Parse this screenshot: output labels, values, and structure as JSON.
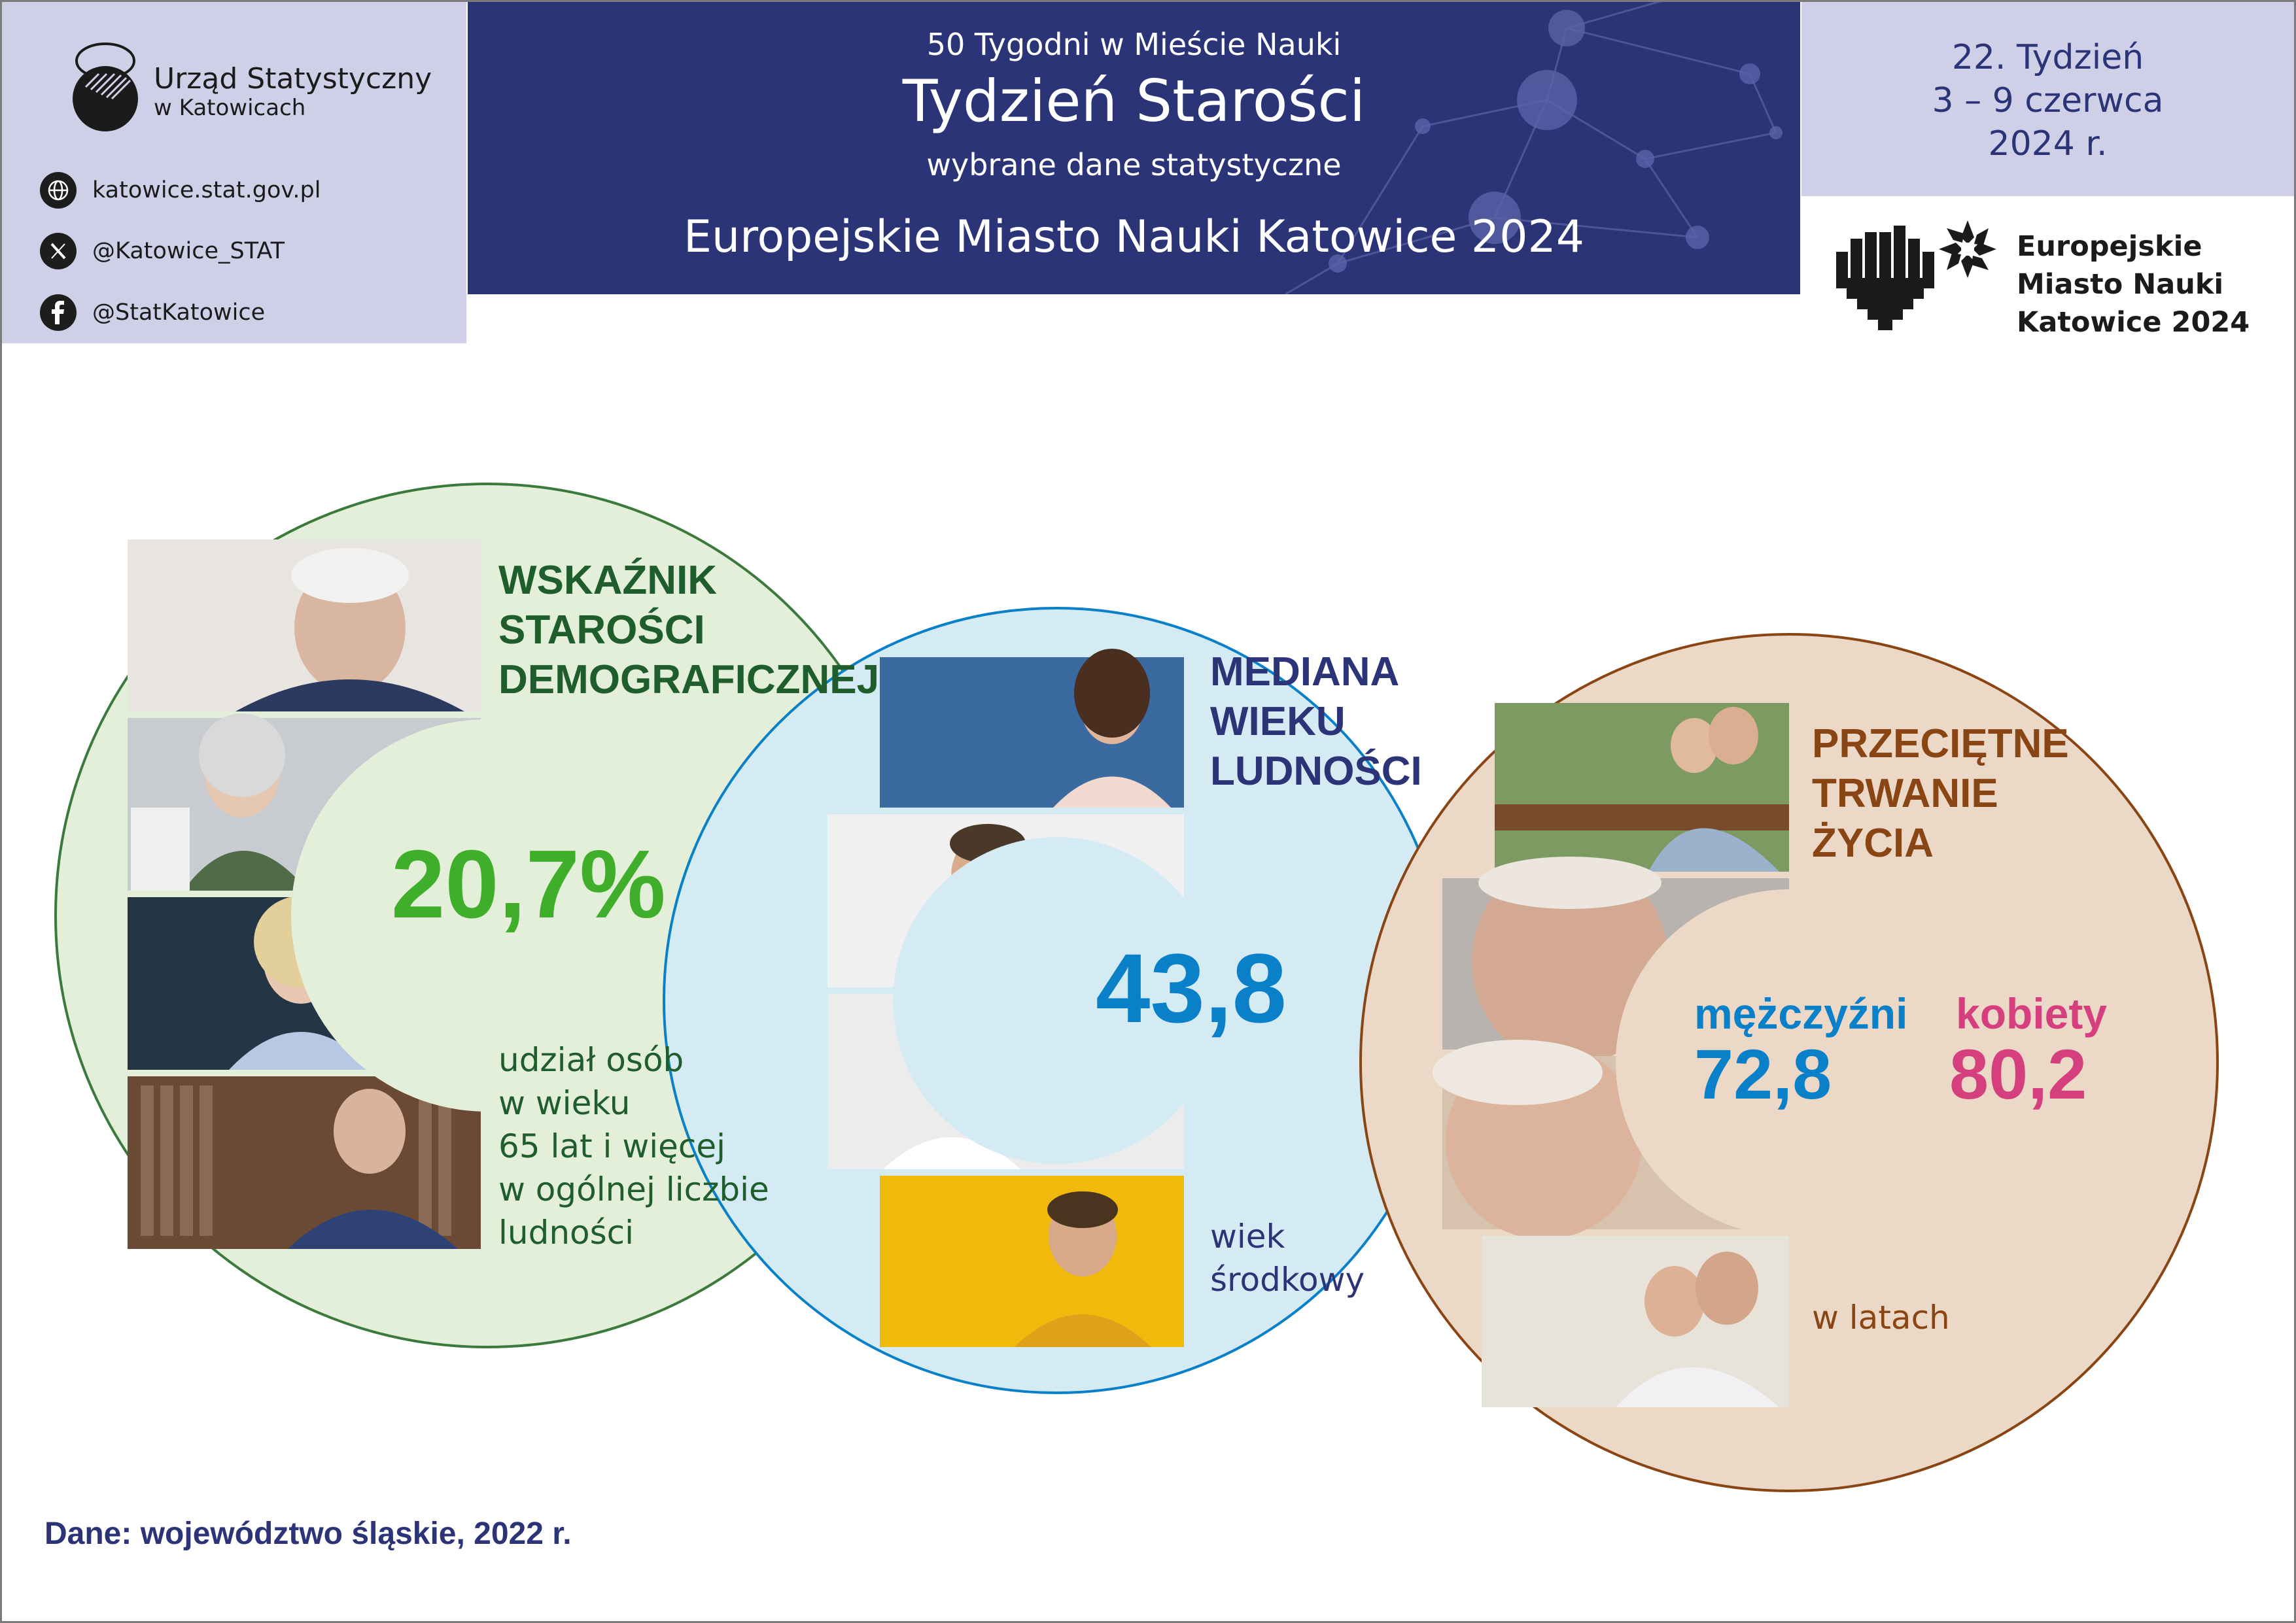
{
  "org": {
    "name": "Urząd Statystyczny",
    "city": "w Katowicach"
  },
  "social": {
    "web": "katowice.stat.gov.pl",
    "x": "@Katowice_STAT",
    "facebook": "@StatKatowice"
  },
  "header": {
    "series": "50 Tygodni w Mieście Nauki",
    "title": "Tydzień Starości",
    "subtitle": "wybrane dane statystyczne",
    "event": "Europejskie Miasto Nauki Katowice 2024"
  },
  "week": {
    "number": "22. Tydzień",
    "dates": "3 – 9 czerwca",
    "year": "2024 r."
  },
  "emn_logo": {
    "line1": "Europejskie",
    "line2": "Miasto Nauki",
    "line3": "Katowice 2024"
  },
  "colors": {
    "navy": "#2c3478",
    "lavender": "#cfd0e8",
    "green": "#3fae2a",
    "green_dark": "#1f5e2c",
    "green_bg": "#e3efd9",
    "blue": "#0a80c8",
    "blue_bg": "#d5ebf4",
    "brown": "#8a4514",
    "brown_bg": "#ecd8c6",
    "pink": "#d63f7d"
  },
  "panels": {
    "aging_index": {
      "title_l1": "WSKAŹNIK",
      "title_l2": "STAROŚCI",
      "title_l3": "DEMOGRAFICZNEJ",
      "value": "20,7%",
      "desc_l1": "udział osób",
      "desc_l2": "w wieku",
      "desc_l3": "65 lat i więcej",
      "desc_l4": "w ogólnej liczbie",
      "desc_l5": "ludności"
    },
    "median_age": {
      "title_l1": "MEDIANA",
      "title_l2": "WIEKU",
      "title_l3": "LUDNOŚCI",
      "value": "43,8",
      "desc_l1": "wiek",
      "desc_l2": "środkowy"
    },
    "life_expectancy": {
      "title_l1": "PRZECIĘTNE",
      "title_l2": "TRWANIE",
      "title_l3": "ŻYCIA",
      "men_label": "mężczyźni",
      "men_value": "72,8",
      "women_label": "kobiety",
      "women_value": "80,2",
      "unit": "w latach"
    }
  },
  "footer": "Dane: województwo śląskie, 2022 r."
}
